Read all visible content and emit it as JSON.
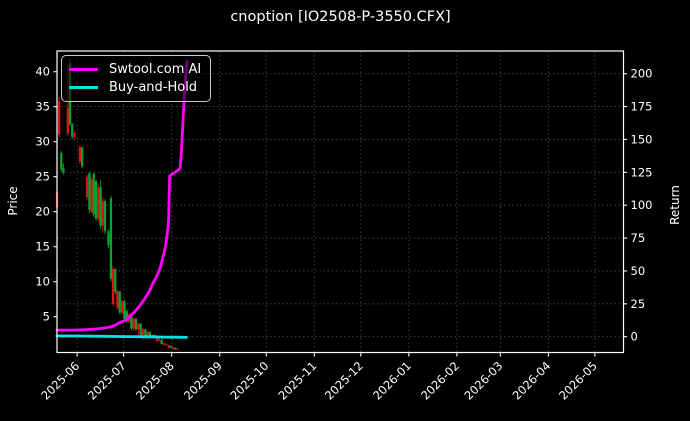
{
  "title": "cnoption [IO2508-P-3550.CFX]",
  "chart_data": {
    "type": "candlestick+line",
    "title": "cnoption [IO2508-P-3550.CFX]",
    "legend_position": "upper left",
    "grid": "dotted",
    "price_axis": {
      "label": "Price",
      "ticks": [
        5,
        10,
        15,
        20,
        25,
        30,
        35,
        40
      ],
      "range": [
        -0.1,
        43.0
      ]
    },
    "return_axis": {
      "label": "Return",
      "ticks": [
        0,
        25,
        50,
        75,
        100,
        125,
        150,
        175,
        200
      ],
      "range": [
        -12.0,
        218.0
      ]
    },
    "x_axis": {
      "unit": "days from left edge of plot",
      "range": [
        0,
        365.5
      ],
      "ticks": [
        {
          "label": "2025-06",
          "day": 13
        },
        {
          "label": "2025-07",
          "day": 43
        },
        {
          "label": "2025-08",
          "day": 74
        },
        {
          "label": "2025-09",
          "day": 105
        },
        {
          "label": "2025-10",
          "day": 135
        },
        {
          "label": "2025-11",
          "day": 166
        },
        {
          "label": "2025-12",
          "day": 196
        },
        {
          "label": "2026-01",
          "day": 227
        },
        {
          "label": "2026-02",
          "day": 258
        },
        {
          "label": "2026-03",
          "day": 286
        },
        {
          "label": "2026-04",
          "day": 317
        },
        {
          "label": "2026-05",
          "day": 347
        }
      ]
    },
    "colors": {
      "background": "#000000",
      "text": "#ffffff",
      "ai_line": "#ff00ff",
      "buy_hold_line": "#00e5e5",
      "candle_up": "#e01212",
      "candle_down": "#00a432"
    },
    "candle_convention": "red = close >= open (up), green = close < open (down)",
    "candles": [
      [
        0.0,
        20.6,
        23.0,
        20.5,
        22.8
      ],
      [
        1.4,
        31.0,
        36.4,
        30.7,
        35.8
      ],
      [
        2.8,
        28.4,
        28.7,
        25.7,
        26.0
      ],
      [
        4.2,
        26.2,
        26.9,
        25.3,
        25.6
      ],
      [
        7.0,
        31.2,
        41.0,
        30.9,
        34.8
      ],
      [
        8.4,
        41.2,
        41.8,
        32.2,
        32.5
      ],
      [
        9.8,
        32.5,
        32.7,
        30.4,
        30.7
      ],
      [
        11.2,
        30.7,
        31.6,
        30.2,
        31.3
      ],
      [
        14.8,
        27.2,
        29.4,
        26.8,
        29.2
      ],
      [
        16.2,
        29.2,
        29.3,
        26.2,
        26.5
      ],
      [
        19.4,
        22.1,
        25.3,
        21.6,
        25.0
      ],
      [
        20.9,
        25.5,
        25.7,
        19.8,
        20.3
      ],
      [
        22.3,
        20.0,
        25.0,
        19.8,
        24.6
      ],
      [
        23.7,
        25.4,
        25.5,
        19.2,
        19.6
      ],
      [
        25.2,
        24.4,
        24.5,
        18.7,
        19.0
      ],
      [
        26.6,
        19.0,
        24.0,
        18.5,
        23.5
      ],
      [
        28.1,
        23.5,
        24.5,
        17.5,
        18.0
      ],
      [
        29.5,
        18.0,
        22.0,
        17.0,
        21.5
      ],
      [
        31.0,
        21.5,
        21.8,
        16.8,
        17.2
      ],
      [
        33.2,
        17.2,
        17.5,
        14.8,
        15.2
      ],
      [
        34.8,
        21.9,
        22.3,
        10.0,
        10.4
      ],
      [
        36.2,
        6.8,
        12.2,
        6.5,
        11.8
      ],
      [
        37.6,
        11.8,
        11.9,
        8.2,
        8.5
      ],
      [
        39.0,
        6.3,
        8.9,
        6.0,
        8.6
      ],
      [
        40.5,
        8.6,
        8.7,
        5.4,
        5.6
      ],
      [
        42.0,
        5.6,
        7.4,
        5.3,
        7.2
      ],
      [
        43.5,
        7.2,
        7.4,
        4.6,
        4.8
      ],
      [
        45.0,
        5.8,
        6.0,
        4.1,
        4.3
      ],
      [
        46.5,
        4.3,
        5.5,
        4.1,
        5.3
      ],
      [
        48.0,
        5.3,
        5.4,
        3.1,
        3.3
      ],
      [
        49.5,
        3.3,
        4.9,
        3.0,
        4.7
      ],
      [
        51.0,
        4.7,
        4.8,
        3.0,
        3.2
      ],
      [
        52.5,
        3.2,
        4.2,
        2.4,
        4.0
      ],
      [
        54.0,
        4.0,
        4.1,
        2.2,
        2.4
      ],
      [
        55.5,
        2.4,
        3.4,
        1.7,
        3.2
      ],
      [
        57.0,
        3.2,
        3.3,
        2.0,
        2.2
      ],
      [
        58.5,
        2.2,
        3.0,
        2.1,
        2.8
      ],
      [
        60.0,
        2.8,
        2.9,
        2.2,
        2.3
      ],
      [
        61.5,
        2.2,
        2.5,
        2.1,
        2.4
      ],
      [
        63.0,
        2.4,
        2.45,
        1.9,
        2.0
      ],
      [
        64.5,
        1.5,
        2.0,
        1.4,
        1.9
      ],
      [
        66.0,
        1.6,
        1.9,
        1.5,
        1.8
      ],
      [
        67.5,
        1.7,
        1.75,
        1.0,
        1.1
      ],
      [
        69.0,
        1.0,
        1.3,
        0.9,
        1.2
      ],
      [
        70.5,
        0.9,
        1.15,
        0.85,
        1.05
      ],
      [
        72.0,
        0.6,
        1.0,
        0.5,
        0.9
      ],
      [
        73.5,
        0.85,
        0.9,
        0.5,
        0.55
      ],
      [
        75.0,
        0.35,
        0.7,
        0.3,
        0.6
      ],
      [
        76.5,
        0.55,
        0.6,
        0.3,
        0.35
      ],
      [
        78.0,
        0.3,
        0.45,
        0.2,
        0.4
      ]
    ],
    "series": [
      {
        "name": "Swtool.com AI",
        "axis": "return",
        "color": "#ff00ff",
        "points": [
          [
            0,
            5.0
          ],
          [
            6,
            5.0
          ],
          [
            12,
            5.1
          ],
          [
            18,
            5.3
          ],
          [
            24,
            5.7
          ],
          [
            28,
            6.2
          ],
          [
            32,
            6.9
          ],
          [
            35,
            7.6
          ],
          [
            38,
            9.0
          ],
          [
            40,
            10.5
          ],
          [
            42,
            11.5
          ],
          [
            44,
            12.5
          ],
          [
            46,
            14.2
          ],
          [
            48,
            16.5
          ],
          [
            50,
            18.8
          ],
          [
            52,
            21.5
          ],
          [
            54,
            24.6
          ],
          [
            56,
            27.8
          ],
          [
            58,
            31.5
          ],
          [
            60,
            35.5
          ],
          [
            61,
            38.5
          ],
          [
            62,
            40.8
          ],
          [
            63,
            43.0
          ],
          [
            64,
            45.2
          ],
          [
            65,
            48.0
          ],
          [
            66,
            50.5
          ],
          [
            67,
            54.0
          ],
          [
            68,
            59.0
          ],
          [
            69,
            63.0
          ],
          [
            70,
            69.0
          ],
          [
            70.8,
            75.0
          ],
          [
            71.6,
            83.0
          ],
          [
            72.0,
            89.0
          ],
          [
            72.3,
            106.0
          ],
          [
            72.7,
            122.0
          ],
          [
            74,
            123.5
          ],
          [
            75.5,
            124.5
          ],
          [
            77,
            125.8
          ],
          [
            78.5,
            127.0
          ],
          [
            79.4,
            128.5
          ],
          [
            80.1,
            138.0
          ],
          [
            80.8,
            152.0
          ],
          [
            81.5,
            168.0
          ],
          [
            82.2,
            184.0
          ],
          [
            82.9,
            196.0
          ],
          [
            83.5,
            204.0
          ],
          [
            84.0,
            209.5
          ]
        ]
      },
      {
        "name": "Buy-and-Hold",
        "axis": "return",
        "color": "#00e5e5",
        "points": [
          [
            0,
            0.6
          ],
          [
            15,
            0.5
          ],
          [
            30,
            0.3
          ],
          [
            45,
            0.1
          ],
          [
            60,
            -0.1
          ],
          [
            70,
            -0.3
          ],
          [
            77,
            -0.4
          ],
          [
            83.5,
            -0.5
          ]
        ]
      }
    ]
  }
}
